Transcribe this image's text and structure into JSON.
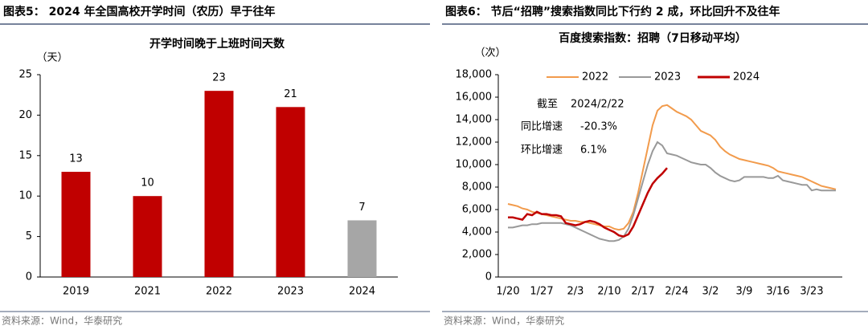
{
  "chart_data": [
    {
      "type": "bar",
      "title": "图表5： 2024 年全国高校开学时间（农历）早于往年",
      "subtitle": "开学时间晚于上班时间天数",
      "ylabel": "（天）",
      "categories": [
        "2019",
        "2021",
        "2022",
        "2023",
        "2024"
      ],
      "values": [
        13,
        10,
        23,
        21,
        7
      ],
      "colors": [
        "#c00000",
        "#c00000",
        "#c00000",
        "#c00000",
        "#a6a6a6"
      ],
      "ylim": [
        0,
        25
      ],
      "yticks": [
        0,
        5,
        10,
        15,
        20,
        25
      ],
      "grid": false,
      "source": "资料来源：Wind，华泰研究"
    },
    {
      "type": "line",
      "title": "图表6： 节后“招聘”搜索指数同比下行约 2 成，环比回升不及往年",
      "subtitle": "百度搜索指数：招聘（7日移动平均）",
      "ylabel": "（次）",
      "categories": [
        "1/20",
        null,
        null,
        null,
        null,
        null,
        null,
        "1/27",
        null,
        null,
        null,
        null,
        null,
        null,
        "2/3",
        null,
        null,
        null,
        null,
        null,
        null,
        "2/10",
        null,
        null,
        null,
        null,
        null,
        null,
        "2/17",
        null,
        null,
        null,
        null,
        null,
        null,
        "2/24",
        null,
        null,
        null,
        null,
        null,
        null,
        "3/2",
        null,
        null,
        null,
        null,
        null,
        null,
        "3/9",
        null,
        null,
        null,
        null,
        null,
        null,
        "3/16",
        null,
        null,
        null,
        null,
        null,
        null,
        "3/23",
        null,
        null,
        null,
        null,
        null
      ],
      "series": [
        {
          "name": "2022",
          "color": "#f29b4c",
          "values": [
            6500,
            6400,
            6300,
            6100,
            6000,
            5800,
            5700,
            5600,
            5500,
            5400,
            5300,
            5200,
            5100,
            5000,
            5000,
            4900,
            4900,
            4800,
            4700,
            4600,
            4500,
            4500,
            4300,
            4200,
            4300,
            4800,
            5800,
            7500,
            9500,
            11500,
            13500,
            14800,
            15200,
            15300,
            15000,
            14700,
            14500,
            14300,
            14000,
            13500,
            13000,
            12800,
            12600,
            12200,
            11600,
            11200,
            10900,
            10700,
            10500,
            10400,
            10300,
            10200,
            10100,
            10000,
            9900,
            9700,
            9400,
            9300,
            9200,
            9100,
            9000,
            8900,
            8700,
            8500,
            8300,
            8100,
            8000,
            7900,
            7800
          ]
        },
        {
          "name": "2023",
          "color": "#999999",
          "values": [
            4400,
            4400,
            4500,
            4600,
            4600,
            4700,
            4700,
            4800,
            4800,
            4800,
            4800,
            4800,
            4700,
            4600,
            4400,
            4200,
            4000,
            3800,
            3600,
            3400,
            3300,
            3200,
            3200,
            3300,
            3600,
            4300,
            5500,
            7000,
            8500,
            10000,
            11200,
            12000,
            11700,
            11000,
            10900,
            10800,
            10600,
            10400,
            10200,
            10100,
            10000,
            10000,
            9700,
            9300,
            9000,
            8800,
            8600,
            8500,
            8600,
            8900,
            8900,
            8900,
            8900,
            8900,
            8800,
            8800,
            9000,
            8600,
            8500,
            8400,
            8300,
            8200,
            8200,
            7700,
            7800,
            7700,
            7700,
            7700,
            7700
          ]
        },
        {
          "name": "2024",
          "color": "#c00000",
          "values": [
            5300,
            5300,
            5200,
            5100,
            5600,
            5500,
            5800,
            5600,
            5600,
            5500,
            5500,
            5400,
            4800,
            4700,
            4600,
            4700,
            4900,
            5000,
            4900,
            4700,
            4400,
            4200,
            4000,
            3700,
            3600,
            3800,
            4500,
            5500,
            6500,
            7500,
            8300,
            8800,
            9200,
            9700,
            null,
            null,
            null,
            null,
            null,
            null,
            null,
            null,
            null,
            null,
            null,
            null,
            null,
            null,
            null,
            null,
            null,
            null,
            null,
            null,
            null,
            null,
            null,
            null,
            null,
            null,
            null,
            null,
            null,
            null,
            null,
            null,
            null,
            null,
            null
          ]
        }
      ],
      "ylim": [
        0,
        18000
      ],
      "yticks": [
        0,
        {
          "value": 2000,
          "label": "2,000"
        },
        {
          "value": 4000,
          "label": "4,000"
        },
        {
          "value": 6000,
          "label": "6,000"
        },
        {
          "value": 8000,
          "label": "8,000"
        },
        {
          "value": 10000,
          "label": "10,000"
        },
        {
          "value": 12000,
          "label": "12,000"
        },
        {
          "value": 14000,
          "label": "14,000"
        },
        {
          "value": 16000,
          "label": "16,000"
        },
        {
          "value": 18000,
          "label": "18,000"
        }
      ],
      "grid": false,
      "legend": "top",
      "annotations": [
        "截至",
        "2024/2/22",
        "同比增速",
        "-20.3%",
        "环比增速",
        "6.1%"
      ],
      "source": "资料来源：Wind，华泰研究"
    }
  ]
}
